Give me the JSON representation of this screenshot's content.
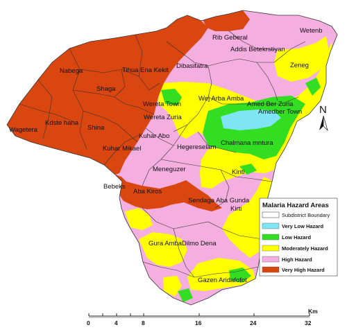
{
  "map": {
    "colors": {
      "very_high": "#d9460f",
      "high": "#f4aee0",
      "moderate": "#ffff00",
      "low": "#33dd22",
      "very_low": "#7fe5f5",
      "boundary": "#333333"
    },
    "place_labels": [
      "Rib Geberal",
      "Wetenb",
      "Addis Betekrstiyan",
      "Nabega",
      "Tihua Ena Kekit",
      "Dibasifatra",
      "Zeneg",
      "Shaga",
      "Wej Arba Amba",
      "Amed Ber Zuria",
      "Amedber Town",
      "Wereta Town",
      "Wereta Zuria",
      "Kdste hana",
      "Shina",
      "Wagetera",
      "Kuhar Abo",
      "Chalmana mntura",
      "Hegereselam",
      "Kuhar Mikael",
      "Meneguzer",
      "Kinti",
      "Bebeks",
      "Aba Kiros",
      "Sendaga Aba Gunda",
      "Kirti",
      "Gura Amba",
      "Dilmo Dena",
      "Gazen Aridafofot"
    ]
  },
  "legend": {
    "title": "Malaria Hazard Areas",
    "items": [
      {
        "label": "Subdistrict Boundary",
        "color": "#ffffff",
        "key": "boundary"
      },
      {
        "label": "Very Low Hazard",
        "color": "#7fe5f5",
        "key": "very_low"
      },
      {
        "label": "Low Hazard",
        "color": "#33dd22",
        "key": "low"
      },
      {
        "label": "Moderately Hazard",
        "color": "#ffff00",
        "key": "moderate"
      },
      {
        "label": "High Hazard",
        "color": "#f4aee0",
        "key": "high"
      },
      {
        "label": "Very High Hazard",
        "color": "#d9460f",
        "key": "very_high"
      }
    ]
  },
  "north_arrow": {
    "label": "N"
  },
  "scale_bar": {
    "unit": "Km",
    "ticks": [
      "0",
      "4",
      "8",
      "16",
      "24",
      "32"
    ]
  }
}
